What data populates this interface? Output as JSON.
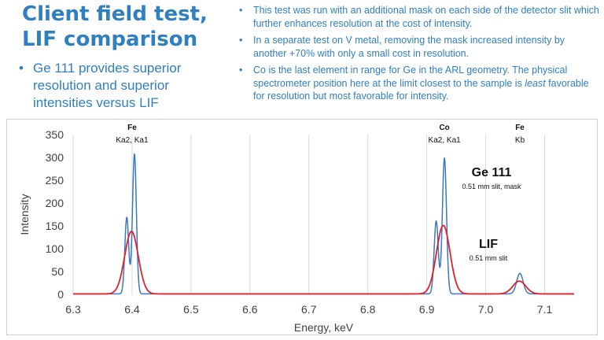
{
  "slide": {
    "title_line1": "Client field test,",
    "title_line2": "LIF comparison",
    "left_bullets": [
      "Ge 111 provides superior resolution and superior intensities versus LIF"
    ],
    "right_bullets": [
      {
        "text": "This test was run with an additional mask on each side of the detector slit which further enhances resolution at the cost of intensity."
      },
      {
        "text": "In a separate test on V metal, removing the mask increased intensity by another +70% with only a small cost in resolution."
      },
      {
        "pre": "Co is the last element in range for Ge in the ARL geometry. The physical spectrometer position here at the limit closest to the sample is ",
        "em": "least",
        "post": " favorable for resolution but most favorable for intensity."
      }
    ]
  },
  "chart_data": {
    "type": "line",
    "title": "",
    "xlabel": "Energy, keV",
    "ylabel": "Intensity",
    "xlim": [
      6.3,
      7.15
    ],
    "ylim": [
      0,
      350
    ],
    "xticks": [
      6.3,
      6.4,
      6.5,
      6.6,
      6.7,
      6.8,
      6.9,
      7.0,
      7.1
    ],
    "yticks": [
      0,
      50,
      100,
      150,
      200,
      250,
      300,
      350
    ],
    "grid": {
      "vertical": true,
      "horizontal": false
    },
    "colors": {
      "ge111": "#3a78c0",
      "lif": "#e0222b"
    },
    "peak_labels": [
      {
        "element": "Fe",
        "lines": "Ka2, Ka1",
        "x": 6.4
      },
      {
        "element": "Co",
        "lines": "Ka2, Ka1",
        "x": 6.93
      },
      {
        "element": "Fe",
        "lines": "Kb",
        "x": 7.058
      }
    ],
    "series": [
      {
        "key": "ge111",
        "name": "Ge 111",
        "note": "0.51 mm slit, mask",
        "peaks": [
          {
            "center": 6.391,
            "height": 168,
            "sigma": 0.0033
          },
          {
            "center": 6.404,
            "height": 307,
            "sigma": 0.0033
          },
          {
            "center": 6.916,
            "height": 160,
            "sigma": 0.0035
          },
          {
            "center": 6.93,
            "height": 298,
            "sigma": 0.0035
          },
          {
            "center": 7.058,
            "height": 45,
            "sigma": 0.0055
          }
        ],
        "baseline": 1
      },
      {
        "key": "lif",
        "name": "LIF",
        "note": "0.51 mm slit",
        "peaks": [
          {
            "center": 6.399,
            "height": 137,
            "sigma": 0.0115
          },
          {
            "center": 6.928,
            "height": 150,
            "sigma": 0.0115
          },
          {
            "center": 7.057,
            "height": 28,
            "sigma": 0.011
          }
        ],
        "baseline": 1
      }
    ]
  }
}
